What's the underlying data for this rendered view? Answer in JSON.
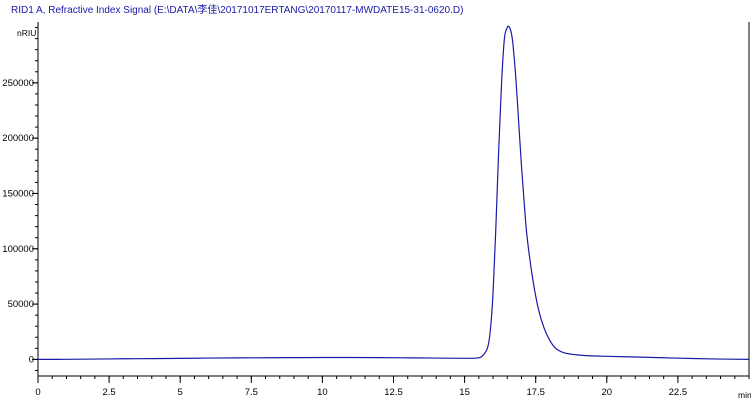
{
  "header": {
    "title": "RID1 A, Refractive Index Signal (E:\\DATA\\李佳\\20171017ERTANG\\20170117-MWDATE15-31-0620.D)"
  },
  "colors": {
    "trace": "#1a1aa6",
    "axis": "#000000",
    "background": "#ffffff"
  },
  "chart_data": {
    "type": "line",
    "title": "RID1 A, Refractive Index Signal (E:\\DATA\\李佳\\20171017ERTANG\\20170117-MWDATE15-31-0620.D)",
    "xlabel": "min",
    "ylabel": "nRIU",
    "xlim": [
      0,
      25
    ],
    "ylim": [
      -15000,
      305000
    ],
    "grid": false,
    "legend": "none",
    "x_ticks": [
      0,
      2.5,
      5,
      7.5,
      10,
      12.5,
      15,
      17.5,
      20,
      22.5
    ],
    "x_tick_labels": [
      "0",
      "2.5",
      "5",
      "7.5",
      "10",
      "12.5",
      "15",
      "17.5",
      "20",
      "22.5"
    ],
    "y_ticks": [
      0,
      50000,
      100000,
      150000,
      200000,
      250000
    ],
    "y_tick_labels": [
      "0",
      "50000",
      "100000",
      "150000",
      "200000",
      "250000"
    ],
    "series": [
      {
        "x": [
          0,
          1,
          2,
          3,
          4,
          5,
          6,
          7,
          8,
          9,
          10,
          11,
          12,
          13,
          14,
          15,
          15.4,
          15.6,
          15.8,
          15.9,
          16.0,
          16.1,
          16.2,
          16.3,
          16.4,
          16.5,
          16.55,
          16.6,
          16.65,
          16.7,
          16.8,
          16.9,
          17.0,
          17.1,
          17.2,
          17.4,
          17.6,
          17.8,
          18.0,
          18.2,
          18.5,
          19.0,
          19.5,
          20,
          21,
          22,
          23,
          24,
          25
        ],
        "y": [
          0,
          100,
          300,
          600,
          700,
          900,
          1200,
          1400,
          1500,
          1600,
          1700,
          1700,
          1600,
          1400,
          1200,
          1000,
          1200,
          2500,
          10000,
          25000,
          60000,
          120000,
          190000,
          250000,
          290000,
          300000,
          301000,
          299000,
          294000,
          285000,
          255000,
          215000,
          175000,
          140000,
          110000,
          72000,
          45000,
          28000,
          17000,
          10000,
          6000,
          4000,
          3200,
          2800,
          2200,
          1500,
          800,
          300,
          0
        ]
      }
    ]
  }
}
